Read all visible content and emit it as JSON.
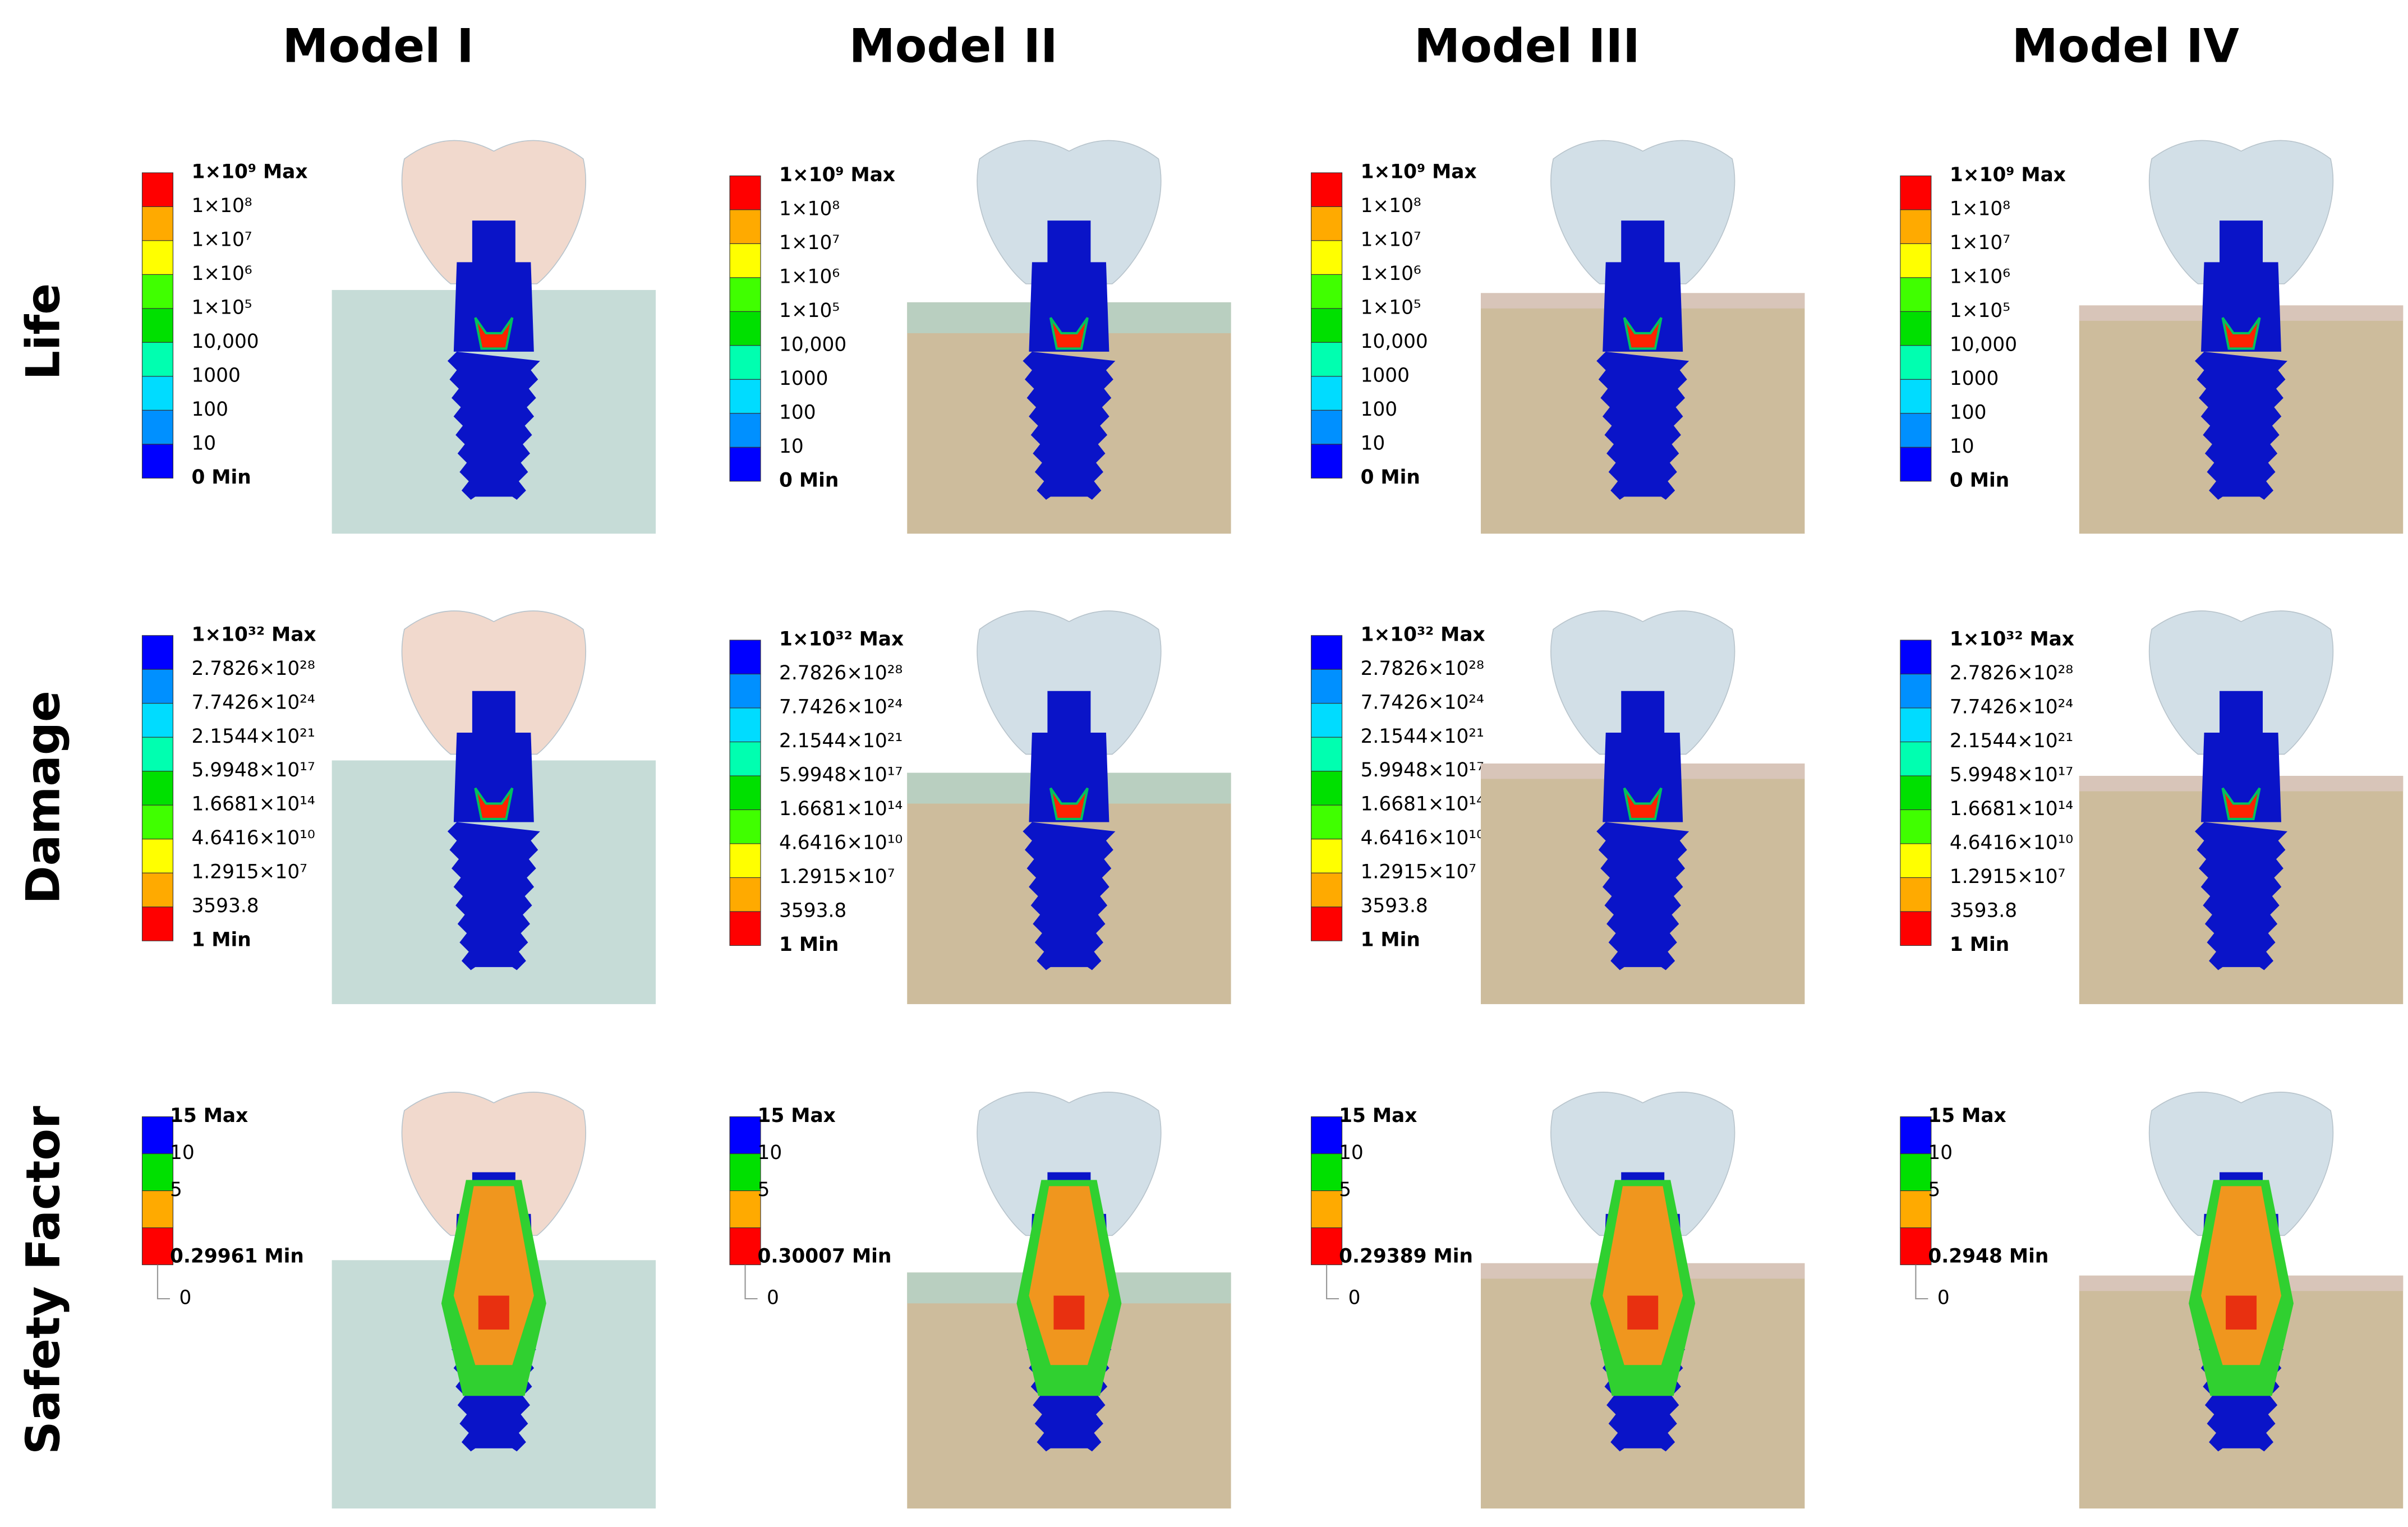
{
  "columns": [
    "Model I",
    "Model II",
    "Model III",
    "Model IV"
  ],
  "rows": [
    "Life",
    "Damage",
    "Safety Factor"
  ],
  "legends": {
    "life": [
      "1×10⁹ Max",
      "1×10⁸",
      "1×10⁷",
      "1×10⁶",
      "1×10⁵",
      "10,000",
      "1000",
      "100",
      "10",
      "0 Min"
    ],
    "damage": [
      "1×10³² Max",
      "2.7826×10²⁸",
      "7.7426×10²⁴",
      "2.1544×10²¹",
      "5.9948×10¹⁷",
      "1.6681×10¹⁴",
      "4.6416×10¹⁰",
      "1.2915×10⁷",
      "3593.8",
      "1 Min"
    ],
    "safety": [
      [
        "15 Max",
        "10",
        "5",
        "0.29961 Min",
        "0"
      ],
      [
        "15 Max",
        "10",
        "5",
        "0.30007 Min",
        "0"
      ],
      [
        "15 Max",
        "10",
        "5",
        "0.29389 Min",
        "0"
      ],
      [
        "15 Max",
        "10",
        "5",
        "0.2948 Min",
        "0"
      ]
    ]
  }
}
